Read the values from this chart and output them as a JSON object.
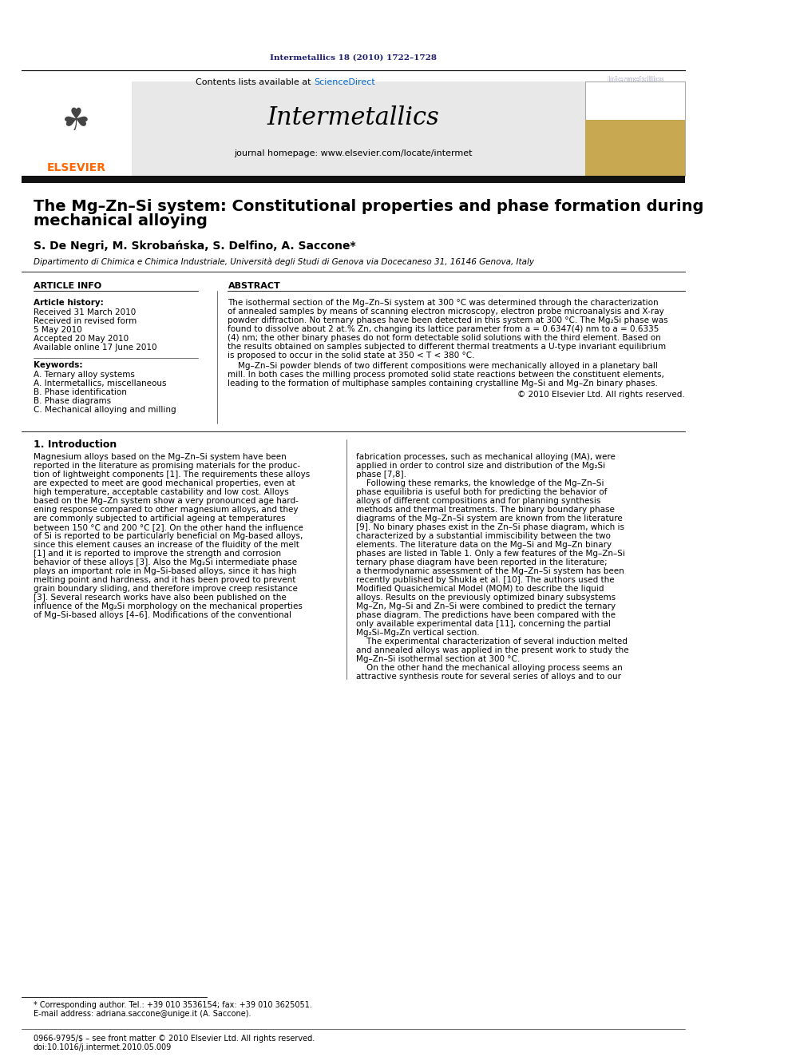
{
  "page_title": "Intermetallics 18 (2010) 1722–1728",
  "journal_name": "Intermetallics",
  "contents_line": "Contents lists available at ScienceDirect",
  "homepage_line": "journal homepage: www.elsevier.com/locate/intermet",
  "article_title_line1": "The Mg–Zn–Si system: Constitutional properties and phase formation during",
  "article_title_line2": "mechanical alloying",
  "authors": "S. De Negri, M. Skrobańska, S. Delfino, A. Saccone*",
  "affiliation": "Dipartimento di Chimica e Chimica Industriale, Università degli Studi di Genova via Docecaneso 31, 16146 Genova, Italy",
  "article_info_header": "ARTICLE INFO",
  "abstract_header": "ABSTRACT",
  "article_history_label": "Article history:",
  "received1": "Received 31 March 2010",
  "received2": "Received in revised form",
  "date5may": "5 May 2010",
  "accepted": "Accepted 20 May 2010",
  "available": "Available online 17 June 2010",
  "keywords_label": "Keywords:",
  "keyword_A_ternary": "A. Ternary alloy systems",
  "keyword_A_intermetallics": "A. Intermetallics, miscellaneous",
  "keyword_B_phase_id": "B. Phase identification",
  "keyword_B_phase_diag": "B. Phase diagrams",
  "keyword_C_mech": "C. Mechanical alloying and milling",
  "abstract_text1": "The isothermal section of the Mg–Zn–Si system at 300 °C was determined through the characterization",
  "abstract_text2": "of annealed samples by means of scanning electron microscopy, electron probe microanalysis and X-ray",
  "abstract_text3": "powder diffraction. No ternary phases have been detected in this system at 300 °C. The Mg₂Si phase was",
  "abstract_text4": "found to dissolve about 2 at.% Zn, changing its lattice parameter from a = 0.6347(4) nm to a = 0.6335",
  "abstract_text5": "(4) nm; the other binary phases do not form detectable solid solutions with the third element. Based on",
  "abstract_text6": "the results obtained on samples subjected to different thermal treatments a U-type invariant equilibrium",
  "abstract_text7": "is proposed to occur in the solid state at 350 < T < 380 °C.",
  "abstract_text8": "Mg–Zn–Si powder blends of two different compositions were mechanically alloyed in a planetary ball",
  "abstract_text9": "mill. In both cases the milling process promoted solid state reactions between the constituent elements,",
  "abstract_text10": "leading to the formation of multiphase samples containing crystalline Mg–Si and Mg–Zn binary phases.",
  "abstract_copyright": "© 2010 Elsevier Ltd. All rights reserved.",
  "section1_title": "1. Introduction",
  "footnote_corresponding": "* Corresponding author. Tel.: +39 010 3536154; fax: +39 010 3625051.",
  "footnote_email": "E-mail address: adriana.saccone@unige.it (A. Saccone).",
  "footer_line1": "0966-9795/$ – see front matter © 2010 Elsevier Ltd. All rights reserved.",
  "footer_line2": "doi:10.1016/j.intermet.2010.05.009",
  "bg_color": "#ffffff",
  "header_bar_color": "#1a1a6e",
  "elsevier_orange": "#FF6600",
  "science_direct_blue": "#0066cc",
  "header_bg": "#e8e8e8",
  "dark_bar_color": "#111111",
  "intro_col1_lines": [
    "Magnesium alloys based on the Mg–Zn–Si system have been",
    "reported in the literature as promising materials for the produc-",
    "tion of lightweight components [1]. The requirements these alloys",
    "are expected to meet are good mechanical properties, even at",
    "high temperature, acceptable castability and low cost. Alloys",
    "based on the Mg–Zn system show a very pronounced age hard-",
    "ening response compared to other magnesium alloys, and they",
    "are commonly subjected to artificial ageing at temperatures",
    "between 150 °C and 200 °C [2]. On the other hand the influence",
    "of Si is reported to be particularly beneficial on Mg-based alloys,",
    "since this element causes an increase of the fluidity of the melt",
    "[1] and it is reported to improve the strength and corrosion",
    "behavior of these alloys [3]. Also the Mg₂Si intermediate phase",
    "plays an important role in Mg–Si-based alloys, since it has high",
    "melting point and hardness, and it has been proved to prevent",
    "grain boundary sliding, and therefore improve creep resistance",
    "[3]. Several research works have also been published on the",
    "influence of the Mg₂Si morphology on the mechanical properties",
    "of Mg–Si-based alloys [4–6]. Modifications of the conventional"
  ],
  "intro_col2_lines": [
    "fabrication processes, such as mechanical alloying (MA), were",
    "applied in order to control size and distribution of the Mg₂Si",
    "phase [7,8].",
    "    Following these remarks, the knowledge of the Mg–Zn–Si",
    "phase equilibria is useful both for predicting the behavior of",
    "alloys of different compositions and for planning synthesis",
    "methods and thermal treatments. The binary boundary phase",
    "diagrams of the Mg–Zn–Si system are known from the literature",
    "[9]. No binary phases exist in the Zn–Si phase diagram, which is",
    "characterized by a substantial immiscibility between the two",
    "elements. The literature data on the Mg–Si and Mg–Zn binary",
    "phases are listed in Table 1. Only a few features of the Mg–Zn–Si",
    "ternary phase diagram have been reported in the literature;",
    "a thermodynamic assessment of the Mg–Zn–Si system has been",
    "recently published by Shukla et al. [10]. The authors used the",
    "Modified Quasichemical Model (MQM) to describe the liquid",
    "alloys. Results on the previously optimized binary subsystems",
    "Mg–Zn, Mg–Si and Zn–Si were combined to predict the ternary",
    "phase diagram. The predictions have been compared with the",
    "only available experimental data [11], concerning the partial",
    "Mg₂Si–Mg₂Zn vertical section.",
    "    The experimental characterization of several induction melted",
    "and annealed alloys was applied in the present work to study the",
    "Mg–Zn–Si isothermal section at 300 °C.",
    "    On the other hand the mechanical alloying process seems an",
    "attractive synthesis route for several series of alloys and to our"
  ]
}
